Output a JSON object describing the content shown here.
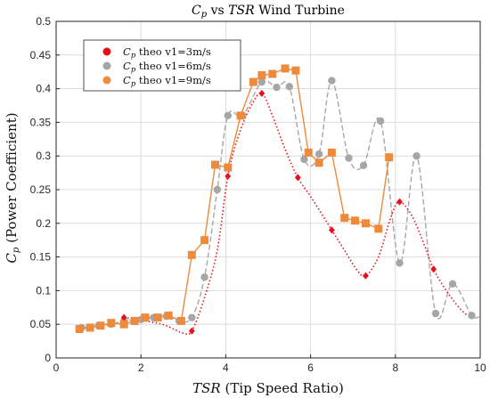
{
  "chart_data": {
    "type": "line",
    "title_parts": {
      "left": "C",
      "left_sub": "p",
      "mid": " vs ",
      "right": "TSR",
      "tail": " Wind Turbine"
    },
    "xlabel_parts": {
      "math": "TSR",
      "rest": " (Tip Speed Ratio)"
    },
    "ylabel_parts": {
      "math": "C",
      "sub": "p",
      "rest": " (Power Coefficient)"
    },
    "xlim": [
      0,
      10
    ],
    "ylim": [
      0,
      0.5
    ],
    "xticks": [
      0,
      2,
      4,
      6,
      8,
      10
    ],
    "yticks": [
      0,
      0.05,
      0.1,
      0.15,
      0.2,
      0.25,
      0.3,
      0.35,
      0.4,
      0.45,
      0.5
    ],
    "grid": true,
    "legend_position": "top-left",
    "series": [
      {
        "name_sym": "C",
        "name_sub": "p",
        "name_rest": " theo v1=3m/s",
        "color": "#e8101a",
        "marker": "diamond",
        "line_style": "dotted",
        "x": [
          1.6,
          3.2,
          4.05,
          4.85,
          5.7,
          6.5,
          7.3,
          8.1,
          8.9
        ],
        "y": [
          0.06,
          0.04,
          0.27,
          0.393,
          0.268,
          0.19,
          0.122,
          0.232,
          0.132
        ],
        "curve_x": [
          1.6,
          2.0,
          2.5,
          2.8,
          3.0,
          3.2,
          3.5,
          3.8,
          4.05,
          4.3,
          4.6,
          4.85,
          5.1,
          5.4,
          5.7,
          6.0,
          6.3,
          6.5,
          6.8,
          7.1,
          7.3,
          7.6,
          7.9,
          8.1,
          8.4,
          8.7,
          8.9,
          9.2,
          9.5,
          9.7
        ],
        "curve_y": [
          0.06,
          0.056,
          0.05,
          0.042,
          0.037,
          0.04,
          0.09,
          0.16,
          0.27,
          0.33,
          0.375,
          0.393,
          0.36,
          0.31,
          0.268,
          0.24,
          0.21,
          0.19,
          0.16,
          0.13,
          0.122,
          0.15,
          0.21,
          0.232,
          0.21,
          0.165,
          0.132,
          0.1,
          0.075,
          0.063
        ]
      },
      {
        "name_sym": "C",
        "name_sub": "p",
        "name_rest": " theo v1=6m/s",
        "color": "#a6a6a6",
        "marker": "circle",
        "line_style": "dashed",
        "x": [
          0.6,
          1.0,
          1.3,
          1.6,
          2.0,
          2.3,
          2.6,
          2.9,
          3.2,
          3.5,
          3.8,
          4.05,
          4.4,
          4.85,
          5.2,
          5.5,
          5.85,
          6.2,
          6.5,
          6.9,
          7.25,
          7.65,
          8.1,
          8.5,
          8.95,
          9.35,
          9.8
        ],
        "y": [
          0.045,
          0.048,
          0.05,
          0.055,
          0.057,
          0.06,
          0.062,
          0.055,
          0.06,
          0.12,
          0.25,
          0.36,
          0.36,
          0.41,
          0.402,
          0.403,
          0.295,
          0.303,
          0.412,
          0.297,
          0.286,
          0.352,
          0.141,
          0.3,
          0.066,
          0.11,
          0.063
        ],
        "curve_x": [
          0.6,
          1.0,
          1.3,
          1.6,
          2.0,
          2.3,
          2.6,
          2.9,
          3.2,
          3.5,
          3.8,
          4.05,
          4.4,
          4.85,
          5.2,
          5.5,
          5.85,
          6.2,
          6.5,
          6.9,
          7.25,
          7.65,
          8.1,
          8.5,
          8.95,
          9.35,
          9.8,
          10.0
        ],
        "curve_y": [
          0.045,
          0.048,
          0.05,
          0.055,
          0.057,
          0.06,
          0.062,
          0.055,
          0.06,
          0.12,
          0.25,
          0.36,
          0.36,
          0.41,
          0.402,
          0.403,
          0.295,
          0.303,
          0.412,
          0.297,
          0.286,
          0.352,
          0.141,
          0.3,
          0.066,
          0.11,
          0.063,
          0.062
        ]
      },
      {
        "name_sym": "C",
        "name_sub": "p",
        "name_rest": " theo v1=9m/s",
        "color": "#ee8a3c",
        "marker": "square",
        "line_style": "solid",
        "x": [
          0.55,
          0.8,
          1.05,
          1.3,
          1.6,
          1.85,
          2.1,
          2.4,
          2.65,
          2.95,
          3.2,
          3.5,
          3.75,
          4.05,
          4.35,
          4.65,
          4.85,
          5.1,
          5.4,
          5.65,
          5.95,
          6.2,
          6.5,
          6.8,
          7.05,
          7.3,
          7.6,
          7.85
        ],
        "y": [
          0.043,
          0.045,
          0.048,
          0.052,
          0.05,
          0.055,
          0.06,
          0.06,
          0.063,
          0.055,
          0.153,
          0.175,
          0.287,
          0.283,
          0.36,
          0.41,
          0.42,
          0.422,
          0.43,
          0.427,
          0.305,
          0.29,
          0.305,
          0.208,
          0.204,
          0.2,
          0.192,
          0.298
        ]
      }
    ]
  }
}
